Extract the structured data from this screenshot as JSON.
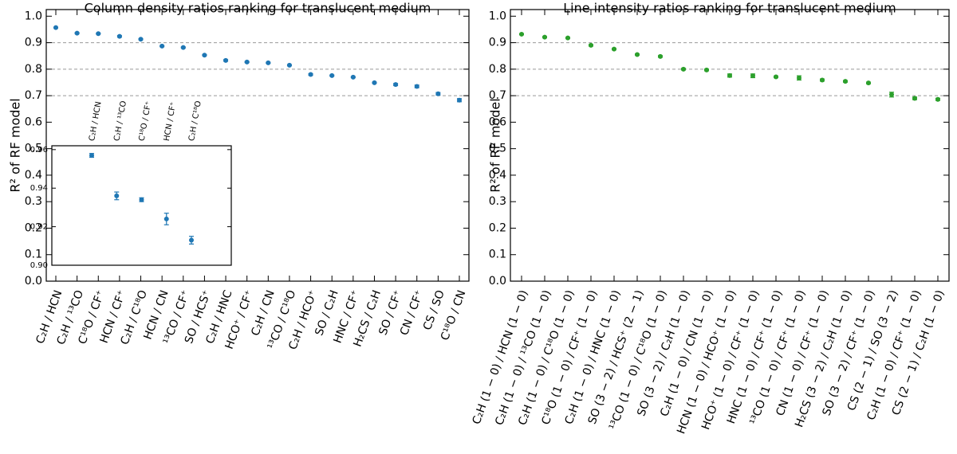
{
  "chart_data": [
    {
      "type": "dot",
      "title": "Column density ratios ranking for translucent medium",
      "ylabel": "R² of RF model",
      "categories": [
        "C₂H / HCN",
        "C₂H / ¹³CO",
        "C¹⁸O / CF⁺",
        "HCN / CF⁺",
        "C₂H / C¹⁸O",
        "HCN / CN",
        "¹³CO / CF⁺",
        "SO / HCS⁺",
        "C₂H / HNC",
        "HCO⁺ / CF⁺",
        "C₂H / CN",
        "¹³CO / C¹⁸O",
        "C₂H / HCO⁺",
        "SO / C₂H",
        "HNC / CF⁺",
        "H₂CS / C₂H",
        "SO / CF⁺",
        "CN / CF⁺",
        "CS / SO",
        "C¹⁸O / CN"
      ],
      "series": [
        {
          "color": "#1f77b4",
          "values": [
            0.957,
            0.936,
            0.934,
            0.924,
            0.913,
            0.887,
            0.882,
            0.853,
            0.833,
            0.827,
            0.824,
            0.815,
            0.78,
            0.776,
            0.77,
            0.749,
            0.742,
            0.735,
            0.707,
            0.683
          ],
          "errors": [
            0.001,
            0.002,
            0.001,
            0.003,
            0.002,
            0.002,
            0.002,
            0.002,
            0.003,
            0.002,
            0.002,
            0.002,
            0.003,
            0.002,
            0.002,
            0.002,
            0.004,
            0.005,
            0.005,
            0.006
          ]
        }
      ],
      "ylim": [
        0,
        1.025
      ],
      "yticks": [
        {
          "value": 0,
          "label": "0.0"
        },
        {
          "value": 0.1,
          "label": "0.1"
        },
        {
          "value": 0.2,
          "label": "0.2"
        },
        {
          "value": 0.3,
          "label": "0.3"
        },
        {
          "value": 0.4,
          "label": "0.4"
        },
        {
          "value": 0.5,
          "label": "0.5"
        },
        {
          "value": 0.6,
          "label": "0.6"
        },
        {
          "value": 0.7,
          "label": "0.7"
        },
        {
          "value": 0.8,
          "label": "0.8"
        },
        {
          "value": 0.9,
          "label": "0.9"
        },
        {
          "value": 1,
          "label": "1.0"
        }
      ],
      "hlines": [
        0.7,
        0.8,
        0.9
      ]
    },
    {
      "type": "dot",
      "categories": [
        "C₂H / HCN",
        "C₂H / ¹³CO",
        "C¹⁸O / CF⁺",
        "HCN / CF⁺",
        "C₂H / C¹⁸O"
      ],
      "series": [
        {
          "color": "#1f77b4",
          "values": [
            0.957,
            0.936,
            0.934,
            0.924,
            0.913
          ],
          "errors": [
            0.001,
            0.002,
            0.001,
            0.003,
            0.002
          ]
        }
      ],
      "ylim": [
        0.9,
        0.962
      ],
      "yticks": [
        {
          "value": 0.9,
          "label": "0.90"
        },
        {
          "value": 0.92,
          "label": "0.92"
        },
        {
          "value": 0.94,
          "label": "0.94"
        },
        {
          "value": 0.96,
          "label": "0.96"
        }
      ]
    },
    {
      "type": "dot",
      "title": "Line intensity ratios ranking for translucent medium",
      "ylabel": "R² of RF model",
      "categories": [
        "C₂H (1 − 0) / HCN (1 − 0)",
        "C₂H (1 − 0) / ¹³CO (1 − 0)",
        "C₂H (1 − 0) / C¹⁸O (1 − 0)",
        "C¹⁸O (1 − 0) / CF⁺ (1 − 0)",
        "C₂H (1 − 0) / HNC (1 − 0)",
        "SO (3 − 2) / HCS⁺ (2 − 1)",
        "¹³CO (1 − 0) / C¹⁸O (1 − 0)",
        "SO (3 − 2) / C₂H (1 − 0)",
        "C₂H (1 − 0) / CN (1 − 0)",
        "HCN (1 − 0) / HCO⁺ (1 − 0)",
        "HCO⁺ (1 − 0) / CF⁺ (1 − 0)",
        "HNC (1 − 0) / CF⁺ (1 − 0)",
        "¹³CO (1 − 0) / CF⁺ (1 − 0)",
        "CN (1 − 0) / CF⁺ (1 − 0)",
        "H₂CS (3 − 2) / C₂H (1 − 0)",
        "SO (3 − 2) / CF⁺ (1 − 0)",
        "CS (2 − 1) / SO (3 − 2)",
        "C₂H (1 − 0) / CF⁺ (1 − 0)",
        "CS (2 − 1) / C₂H (1 − 0)"
      ],
      "series": [
        {
          "color": "#2ca02c",
          "values": [
            0.932,
            0.921,
            0.918,
            0.89,
            0.876,
            0.855,
            0.848,
            0.8,
            0.797,
            0.776,
            0.775,
            0.771,
            0.767,
            0.759,
            0.754,
            0.748,
            0.704,
            0.69,
            0.686
          ],
          "errors": [
            0.002,
            0.002,
            0.002,
            0.003,
            0.002,
            0.002,
            0.003,
            0.003,
            0.003,
            0.006,
            0.007,
            0.003,
            0.008,
            0.004,
            0.003,
            0.003,
            0.009,
            0.005,
            0.004
          ]
        }
      ],
      "ylim": [
        0,
        1.025
      ],
      "yticks": [
        {
          "value": 0,
          "label": "0.0"
        },
        {
          "value": 0.1,
          "label": "0.1"
        },
        {
          "value": 0.2,
          "label": "0.2"
        },
        {
          "value": 0.3,
          "label": "0.3"
        },
        {
          "value": 0.4,
          "label": "0.4"
        },
        {
          "value": 0.5,
          "label": "0.5"
        },
        {
          "value": 0.6,
          "label": "0.6"
        },
        {
          "value": 0.7,
          "label": "0.7"
        },
        {
          "value": 0.8,
          "label": "0.8"
        },
        {
          "value": 0.9,
          "label": "0.9"
        },
        {
          "value": 1,
          "label": "1.0"
        }
      ],
      "hlines": [
        0.7,
        0.8,
        0.9
      ]
    }
  ]
}
